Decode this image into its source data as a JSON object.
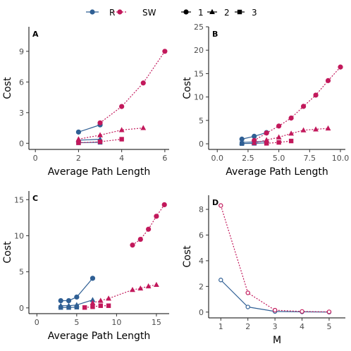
{
  "colors": {
    "R": "#2f5f94",
    "SW": "#c2185b",
    "axis": "#000000",
    "tick_text": "#4d4d4d"
  },
  "legend": {
    "series": [
      {
        "key": "R",
        "label": "R",
        "color": "#2f5f94",
        "dashed": false
      },
      {
        "key": "SW",
        "label": "SW",
        "color": "#c2185b",
        "dashed": true
      }
    ],
    "shapes": [
      {
        "label": "1",
        "shape": "circle"
      },
      {
        "label": "2",
        "shape": "triangle"
      },
      {
        "label": "3",
        "shape": "square"
      }
    ]
  },
  "chart_data": [
    {
      "panel": "A",
      "type": "line",
      "xlabel": "Average Path Length",
      "ylabel": "Cost",
      "xlim": [
        -0.3,
        6.2
      ],
      "ylim": [
        -0.6,
        11.4
      ],
      "xticks": [
        0,
        2,
        4,
        6
      ],
      "yticks": [
        0,
        3,
        6,
        9
      ],
      "series": [
        {
          "group": "R",
          "shape": "circle",
          "x": [
            2,
            3
          ],
          "y": [
            1.1,
            1.8
          ]
        },
        {
          "group": "R",
          "shape": "triangle",
          "x": [
            2,
            3
          ],
          "y": [
            0.3,
            0.4
          ]
        },
        {
          "group": "R",
          "shape": "square",
          "x": [
            2,
            3
          ],
          "y": [
            0.05,
            0.1
          ]
        },
        {
          "group": "SW",
          "shape": "circle",
          "x": [
            3,
            4,
            5,
            6
          ],
          "y": [
            2.0,
            3.6,
            5.9,
            9.0
          ]
        },
        {
          "group": "SW",
          "shape": "triangle",
          "x": [
            2,
            3,
            4,
            5
          ],
          "y": [
            0.4,
            0.8,
            1.3,
            1.5
          ]
        },
        {
          "group": "SW",
          "shape": "square",
          "x": [
            2,
            3,
            4
          ],
          "y": [
            0.05,
            0.15,
            0.4
          ]
        }
      ]
    },
    {
      "panel": "B",
      "type": "line",
      "xlabel": "Average Path Length",
      "ylabel": "Cost",
      "xlim": [
        -0.7,
        10.4
      ],
      "ylim": [
        -1.2,
        25.0
      ],
      "xticks": [
        0.0,
        2.5,
        5.0,
        7.5,
        10.0
      ],
      "xtick_labels": [
        "0.0",
        "2.5",
        "5.0",
        "7.5",
        "10.0"
      ],
      "yticks": [
        0,
        5,
        10,
        15,
        20,
        25
      ],
      "series": [
        {
          "group": "R",
          "shape": "circle",
          "x": [
            2,
            3,
            4
          ],
          "y": [
            1.0,
            1.6,
            2.4
          ]
        },
        {
          "group": "R",
          "shape": "triangle",
          "x": [
            2,
            3,
            4
          ],
          "y": [
            0.3,
            0.4,
            0.6
          ]
        },
        {
          "group": "R",
          "shape": "square",
          "x": [
            2,
            3,
            4
          ],
          "y": [
            0.05,
            0.1,
            0.2
          ]
        },
        {
          "group": "SW",
          "shape": "circle",
          "x": [
            3,
            4,
            5,
            6,
            7,
            8,
            9,
            10
          ],
          "y": [
            0.7,
            2.3,
            3.8,
            5.5,
            8.0,
            10.4,
            13.5,
            16.4
          ]
        },
        {
          "group": "SW",
          "shape": "triangle",
          "x": [
            3,
            4,
            5,
            6,
            7,
            8,
            9
          ],
          "y": [
            0.2,
            0.8,
            1.4,
            2.2,
            2.9,
            3.1,
            3.3
          ]
        },
        {
          "group": "SW",
          "shape": "square",
          "x": [
            4,
            5,
            6
          ],
          "y": [
            0.1,
            0.3,
            0.6
          ]
        }
      ]
    },
    {
      "panel": "C",
      "type": "line",
      "xlabel": "Average Path Length",
      "ylabel": "Cost",
      "xlim": [
        -1.0,
        16.6
      ],
      "ylim": [
        -0.8,
        16.2
      ],
      "xticks": [
        0,
        5,
        10,
        15
      ],
      "yticks": [
        0,
        5,
        10,
        15
      ],
      "series": [
        {
          "group": "R",
          "shape": "circle",
          "x": [
            3,
            4,
            5,
            7
          ],
          "y": [
            1.0,
            1.0,
            1.5,
            4.1
          ]
        },
        {
          "group": "R",
          "shape": "triangle",
          "x": [
            3,
            4,
            5,
            7
          ],
          "y": [
            0.3,
            0.3,
            0.4,
            1.1
          ]
        },
        {
          "group": "R",
          "shape": "square",
          "x": [
            3,
            4,
            5
          ],
          "y": [
            0.05,
            0.05,
            0.1
          ]
        },
        {
          "group": "SW",
          "shape": "circle",
          "x": [
            12,
            13,
            14,
            15,
            16
          ],
          "y": [
            8.7,
            9.5,
            10.9,
            12.7,
            14.3
          ]
        },
        {
          "group": "SW",
          "shape": "triangle",
          "x": [
            7,
            8,
            9,
            12,
            13,
            14,
            15
          ],
          "y": [
            0.7,
            1.0,
            1.3,
            2.5,
            2.7,
            3.0,
            3.2
          ]
        },
        {
          "group": "SW",
          "shape": "square",
          "x": [
            6,
            7,
            8,
            9
          ],
          "y": [
            0.05,
            0.15,
            0.3,
            0.3
          ]
        }
      ]
    },
    {
      "panel": "D",
      "type": "line",
      "xlabel": "M",
      "ylabel": "Cost",
      "xlim": [
        0.55,
        5.6
      ],
      "ylim": [
        -0.45,
        9.1
      ],
      "xticks": [
        1,
        2,
        3,
        4,
        5
      ],
      "yticks": [
        0,
        2,
        4,
        6,
        8
      ],
      "series": [
        {
          "group": "R",
          "shape": "open-circle",
          "x": [
            1,
            2,
            3,
            4,
            5
          ],
          "y": [
            2.5,
            0.4,
            0.05,
            0.02,
            0.0
          ]
        },
        {
          "group": "SW",
          "shape": "open-circle",
          "x": [
            1,
            2,
            3,
            4,
            5
          ],
          "y": [
            8.3,
            1.5,
            0.15,
            0.05,
            0.02
          ]
        }
      ]
    }
  ]
}
